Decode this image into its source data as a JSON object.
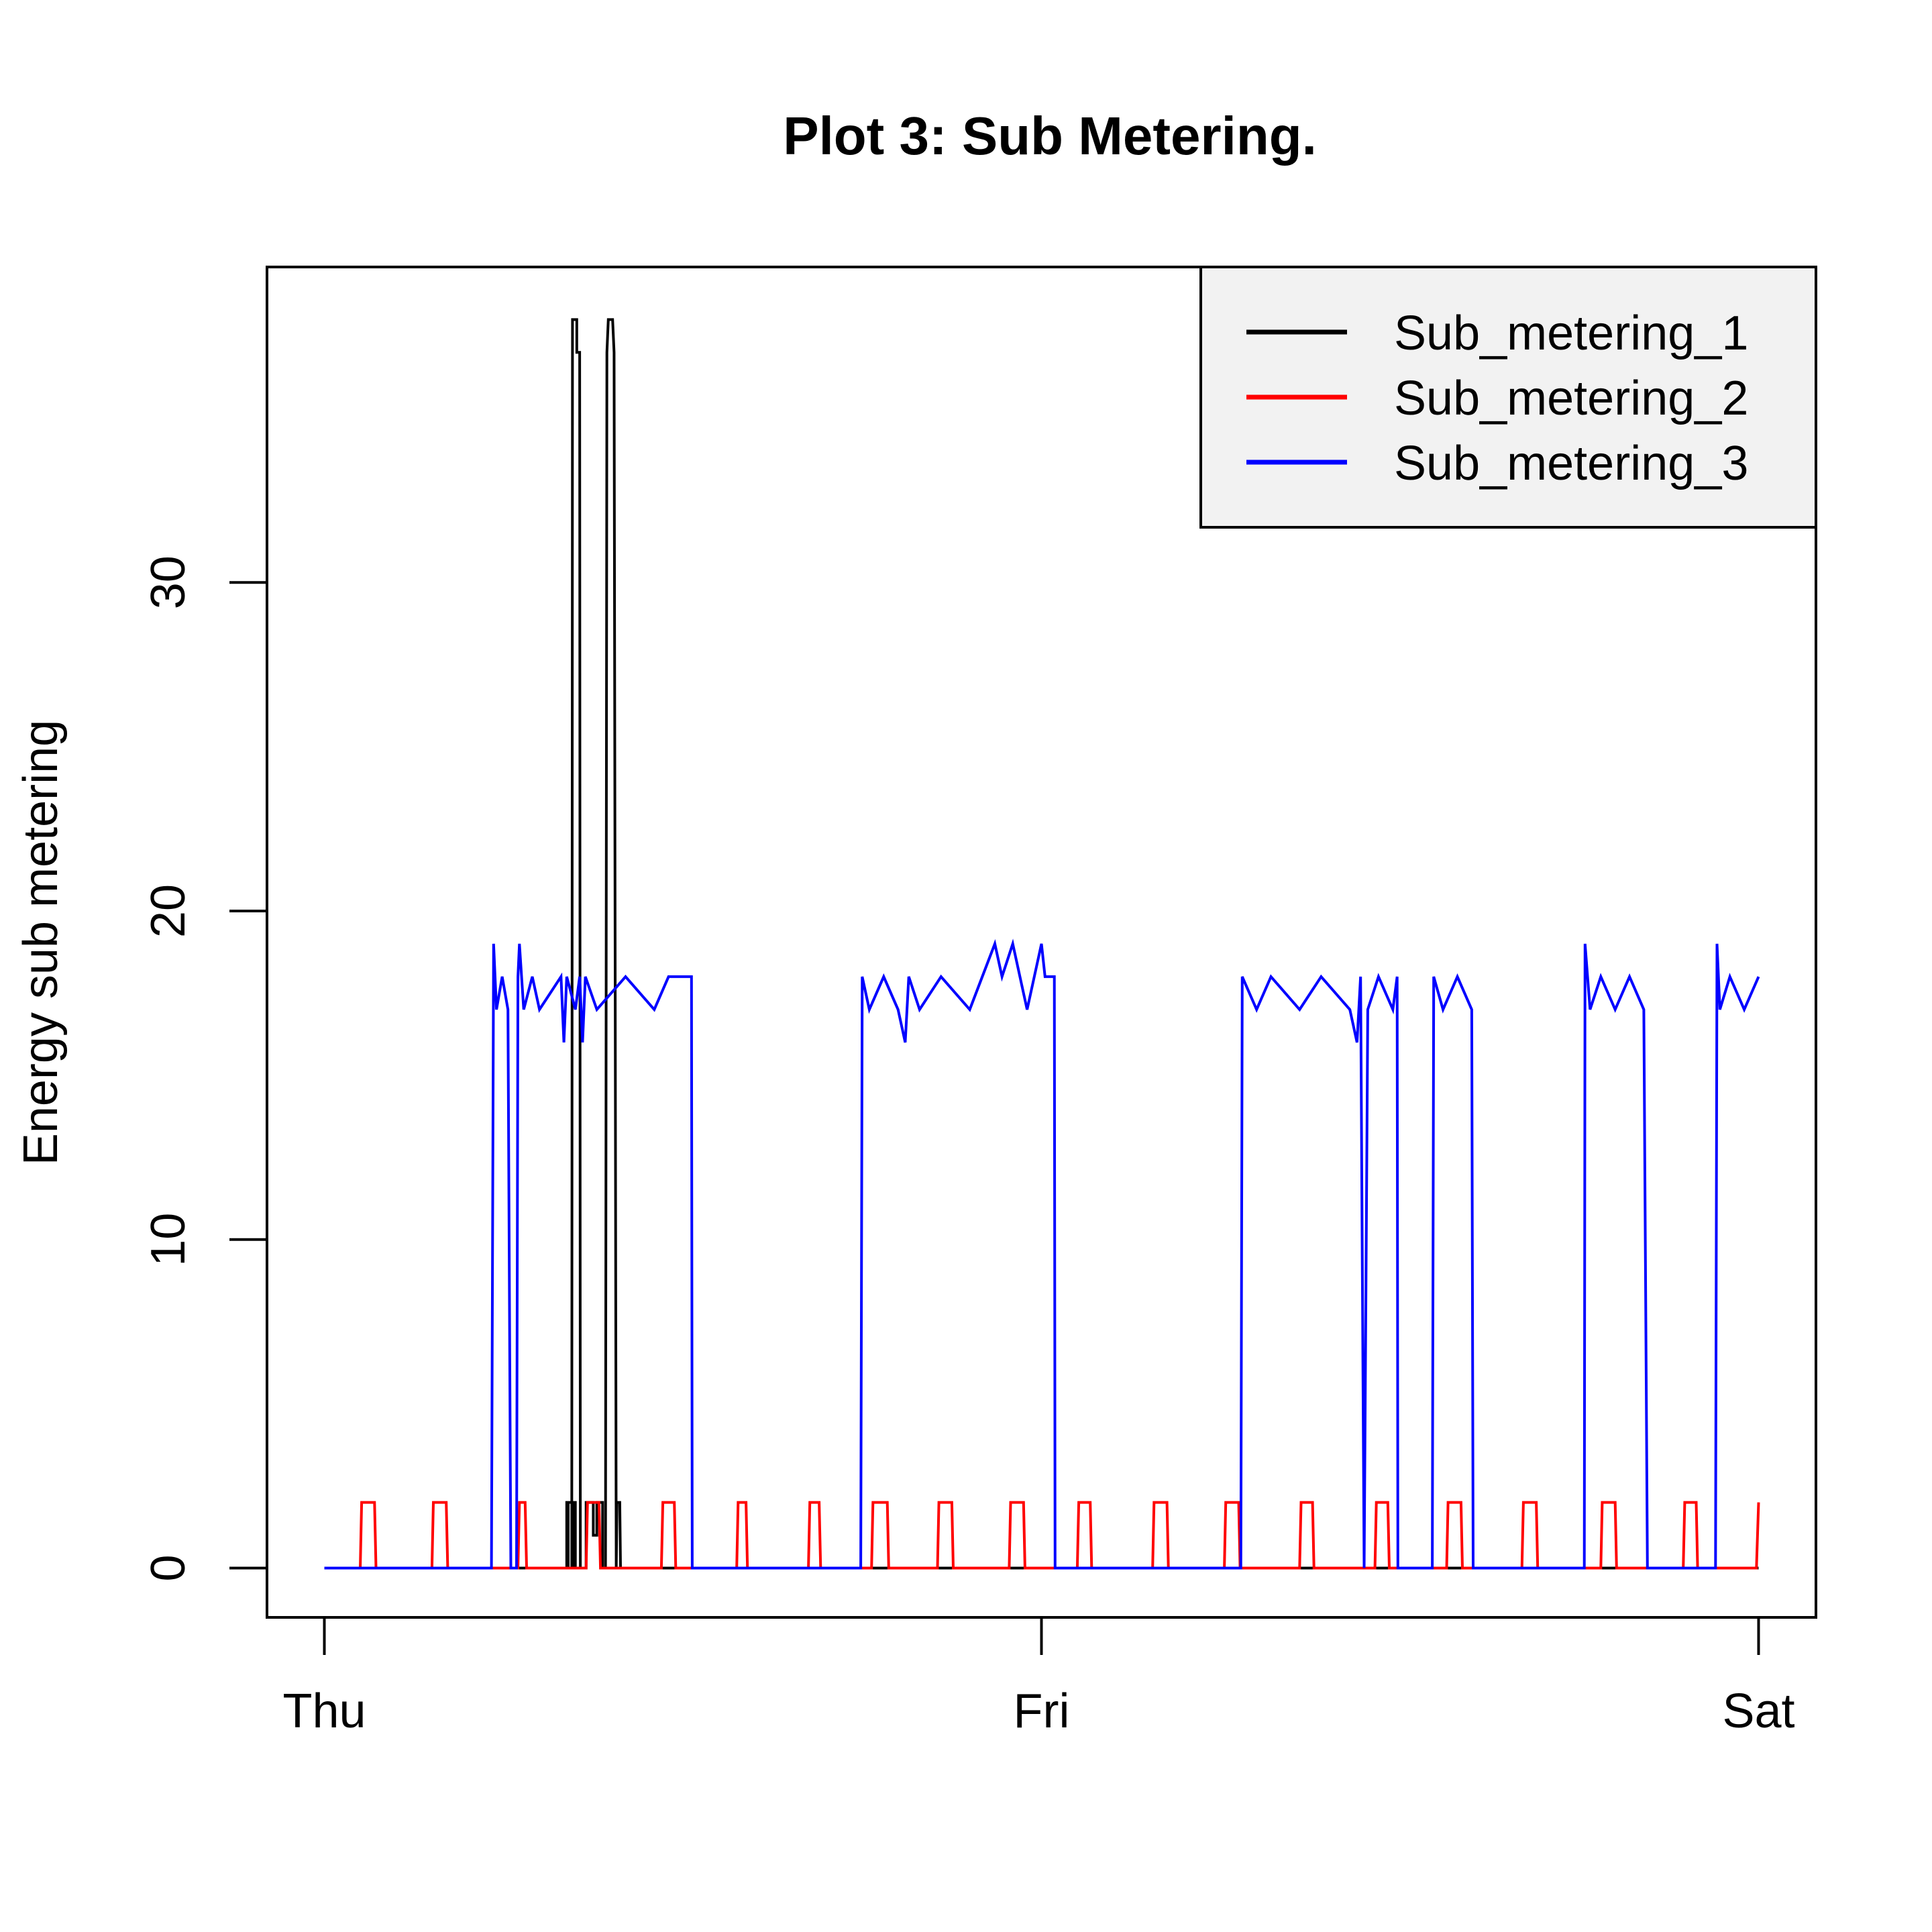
{
  "chart_data": {
    "type": "line",
    "title": "Plot 3: Sub Metering.",
    "xlabel": "",
    "ylabel": "Energy sub metering",
    "x_unit": "day",
    "x_ticks": [
      {
        "value": 0,
        "label": "Thu"
      },
      {
        "value": 1,
        "label": "Fri"
      },
      {
        "value": 2,
        "label": "Sat"
      }
    ],
    "y_ticks": [
      0,
      10,
      20,
      30
    ],
    "xlim": [
      -0.08,
      2.08
    ],
    "ylim": [
      -1.5,
      39.6
    ],
    "grid": false,
    "legend_position": "top-right",
    "series": [
      {
        "name": "Sub_metering_1",
        "color": "#000000",
        "points": [
          [
            0.0,
            0
          ],
          [
            0.34,
            0
          ],
          [
            0.34,
            2
          ],
          [
            0.35,
            2
          ],
          [
            0.35,
            0
          ],
          [
            0.338,
            0
          ],
          [
            0.338,
            2
          ],
          [
            0.347,
            2
          ],
          [
            0.347,
            0
          ],
          [
            0.345,
            0
          ],
          [
            0.346,
            38
          ],
          [
            0.352,
            38
          ],
          [
            0.352,
            37
          ],
          [
            0.356,
            37
          ],
          [
            0.357,
            0
          ],
          [
            0.365,
            0
          ],
          [
            0.365,
            2
          ],
          [
            0.375,
            2
          ],
          [
            0.375,
            1
          ],
          [
            0.38,
            1
          ],
          [
            0.38,
            2
          ],
          [
            0.388,
            2
          ],
          [
            0.388,
            0
          ],
          [
            0.392,
            0
          ],
          [
            0.394,
            37
          ],
          [
            0.396,
            38
          ],
          [
            0.402,
            38
          ],
          [
            0.404,
            37
          ],
          [
            0.407,
            0
          ],
          [
            0.408,
            2
          ],
          [
            0.412,
            2
          ],
          [
            0.413,
            0
          ],
          [
            2.0,
            0
          ]
        ]
      },
      {
        "name": "Sub_metering_2",
        "color": "#ff0000",
        "points": [
          [
            0.0,
            0
          ],
          [
            0.05,
            0
          ],
          [
            0.052,
            2
          ],
          [
            0.07,
            2
          ],
          [
            0.072,
            0
          ],
          [
            0.15,
            0
          ],
          [
            0.152,
            2
          ],
          [
            0.17,
            2
          ],
          [
            0.172,
            0
          ],
          [
            0.27,
            0
          ],
          [
            0.272,
            2
          ],
          [
            0.28,
            2
          ],
          [
            0.282,
            0
          ],
          [
            0.365,
            0
          ],
          [
            0.367,
            2
          ],
          [
            0.383,
            2
          ],
          [
            0.385,
            0
          ],
          [
            0.47,
            0
          ],
          [
            0.472,
            2
          ],
          [
            0.488,
            2
          ],
          [
            0.49,
            0
          ],
          [
            0.575,
            0
          ],
          [
            0.577,
            2
          ],
          [
            0.588,
            2
          ],
          [
            0.59,
            0
          ],
          [
            0.675,
            0
          ],
          [
            0.677,
            2
          ],
          [
            0.69,
            2
          ],
          [
            0.692,
            0
          ],
          [
            0.763,
            0
          ],
          [
            0.765,
            2
          ],
          [
            0.785,
            2
          ],
          [
            0.787,
            0
          ],
          [
            0.855,
            0
          ],
          [
            0.857,
            2
          ],
          [
            0.875,
            2
          ],
          [
            0.877,
            0
          ],
          [
            0.955,
            0
          ],
          [
            0.957,
            2
          ],
          [
            0.975,
            2
          ],
          [
            0.977,
            0
          ],
          [
            1.05,
            0
          ],
          [
            1.052,
            2
          ],
          [
            1.068,
            2
          ],
          [
            1.07,
            0
          ],
          [
            1.155,
            0
          ],
          [
            1.157,
            2
          ],
          [
            1.175,
            2
          ],
          [
            1.177,
            0
          ],
          [
            1.255,
            0
          ],
          [
            1.257,
            2
          ],
          [
            1.275,
            2
          ],
          [
            1.277,
            0
          ],
          [
            1.36,
            0
          ],
          [
            1.362,
            2
          ],
          [
            1.378,
            2
          ],
          [
            1.38,
            0
          ],
          [
            1.465,
            0
          ],
          [
            1.467,
            2
          ],
          [
            1.483,
            2
          ],
          [
            1.485,
            0
          ],
          [
            1.565,
            0
          ],
          [
            1.567,
            2
          ],
          [
            1.585,
            2
          ],
          [
            1.587,
            0
          ],
          [
            1.67,
            0
          ],
          [
            1.672,
            2
          ],
          [
            1.69,
            2
          ],
          [
            1.692,
            0
          ],
          [
            1.78,
            0
          ],
          [
            1.782,
            2
          ],
          [
            1.8,
            2
          ],
          [
            1.802,
            0
          ],
          [
            1.895,
            0
          ],
          [
            1.897,
            2
          ],
          [
            1.913,
            2
          ],
          [
            1.915,
            0
          ],
          [
            1.997,
            0
          ],
          [
            2.0,
            2
          ]
        ]
      },
      {
        "name": "Sub_metering_3",
        "color": "#0000ff",
        "points": [
          [
            0.0,
            0
          ],
          [
            0.233,
            0
          ],
          [
            0.236,
            19
          ],
          [
            0.24,
            17
          ],
          [
            0.248,
            18
          ],
          [
            0.256,
            17
          ],
          [
            0.26,
            0
          ],
          [
            0.268,
            0
          ],
          [
            0.27,
            18
          ],
          [
            0.272,
            19
          ],
          [
            0.278,
            17
          ],
          [
            0.29,
            18
          ],
          [
            0.3,
            17
          ],
          [
            0.33,
            18
          ],
          [
            0.334,
            16
          ],
          [
            0.338,
            18
          ],
          [
            0.35,
            17
          ],
          [
            0.356,
            18
          ],
          [
            0.36,
            16
          ],
          [
            0.364,
            18
          ],
          [
            0.38,
            17
          ],
          [
            0.42,
            18
          ],
          [
            0.46,
            17
          ],
          [
            0.48,
            18
          ],
          [
            0.512,
            18
          ],
          [
            0.513,
            0
          ],
          [
            0.748,
            0
          ],
          [
            0.75,
            18
          ],
          [
            0.76,
            17
          ],
          [
            0.78,
            18
          ],
          [
            0.8,
            17
          ],
          [
            0.81,
            16
          ],
          [
            0.815,
            18
          ],
          [
            0.83,
            17
          ],
          [
            0.86,
            18
          ],
          [
            0.9,
            17
          ],
          [
            0.935,
            19
          ],
          [
            0.945,
            18
          ],
          [
            0.96,
            19
          ],
          [
            0.98,
            17
          ],
          [
            0.99,
            18
          ],
          [
            1.0,
            19
          ],
          [
            1.005,
            18
          ],
          [
            1.018,
            18
          ],
          [
            1.019,
            0
          ],
          [
            1.278,
            0
          ],
          [
            1.28,
            18
          ],
          [
            1.3,
            17
          ],
          [
            1.32,
            18
          ],
          [
            1.36,
            17
          ],
          [
            1.39,
            18
          ],
          [
            1.43,
            17
          ],
          [
            1.44,
            16
          ],
          [
            1.445,
            18
          ],
          [
            1.45,
            0
          ],
          [
            1.455,
            17
          ],
          [
            1.47,
            18
          ],
          [
            1.49,
            17
          ],
          [
            1.496,
            18
          ],
          [
            1.497,
            0
          ],
          [
            1.545,
            0
          ],
          [
            1.547,
            18
          ],
          [
            1.56,
            17
          ],
          [
            1.58,
            18
          ],
          [
            1.6,
            17
          ],
          [
            1.602,
            0
          ],
          [
            1.757,
            0
          ],
          [
            1.758,
            19
          ],
          [
            1.765,
            17
          ],
          [
            1.78,
            18
          ],
          [
            1.8,
            17
          ],
          [
            1.82,
            18
          ],
          [
            1.84,
            17
          ],
          [
            1.845,
            0
          ],
          [
            1.94,
            0
          ],
          [
            1.942,
            19
          ],
          [
            1.946,
            17
          ],
          [
            1.96,
            18
          ],
          [
            1.98,
            17
          ],
          [
            2.0,
            18
          ]
        ]
      }
    ]
  },
  "legend": {
    "items": [
      {
        "label": "Sub_metering_1",
        "color": "#000000"
      },
      {
        "label": "Sub_metering_2",
        "color": "#ff0000"
      },
      {
        "label": "Sub_metering_3",
        "color": "#0000ff"
      }
    ]
  }
}
